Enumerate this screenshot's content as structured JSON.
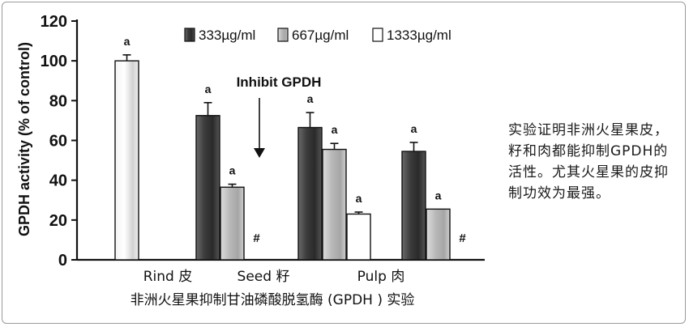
{
  "chart_data": {
    "type": "bar",
    "ylabel": "GPDH activity (% of control)",
    "ylim": [
      0,
      120
    ],
    "yticks": [
      0,
      20,
      40,
      60,
      80,
      100,
      120
    ],
    "caption": "非洲火星果抑制甘油磷酸脱氢酶 (GPDH ) 实验",
    "groups": [
      {
        "category": "Rind 皮",
        "bars": [
          {
            "series": "control",
            "value": 100,
            "error": 3,
            "mark": "a"
          },
          {
            "series": "333",
            "value": 0,
            "error": 0,
            "mark": ""
          },
          {
            "series": "667",
            "value": 0,
            "error": 0,
            "mark": ""
          }
        ]
      },
      {
        "category": "",
        "bars": [
          {
            "series": "333",
            "value": 72.5,
            "error": 6.5,
            "mark": "a"
          },
          {
            "series": "667",
            "value": 36.5,
            "error": 1.5,
            "mark": "a"
          },
          {
            "series": "1333",
            "value": 0,
            "error": 0,
            "mark": "#"
          }
        ]
      },
      {
        "category": "Seed 籽",
        "bars": [
          {
            "series": "333",
            "value": 66.5,
            "error": 7.5,
            "mark": "a"
          },
          {
            "series": "667",
            "value": 55.5,
            "error": 3,
            "mark": "a"
          },
          {
            "series": "1333",
            "value": 23,
            "error": 1,
            "mark": "a"
          }
        ]
      },
      {
        "category": "Pulp 肉",
        "bars": [
          {
            "series": "333",
            "value": 54.5,
            "error": 4.5,
            "mark": "a"
          },
          {
            "series": "667",
            "value": 25.5,
            "error": 0,
            "mark": "a"
          },
          {
            "series": "1333",
            "value": 0,
            "error": 0,
            "mark": "#"
          }
        ]
      }
    ],
    "series": [
      {
        "key": "333",
        "name": "333µg/ml",
        "fill": "dark-gray gradient"
      },
      {
        "key": "667",
        "name": "667µg/ml",
        "fill": "light-gray gradient"
      },
      {
        "key": "1333",
        "name": "1333µg/ml",
        "fill": "white"
      },
      {
        "key": "control",
        "name": "",
        "fill": "white-gray gradient"
      }
    ],
    "annotation": "Inhibit GPDH",
    "legend_position": "top"
  },
  "side_note": "实验证明非洲火星果皮，籽和肉都能抑制GPDH的活性。尤其火星果的皮抑制功效为最强。",
  "colors": {
    "dark": "#3a3a3a",
    "light": "#bdbdbd",
    "white": "#ffffff",
    "axis": "#111111"
  }
}
